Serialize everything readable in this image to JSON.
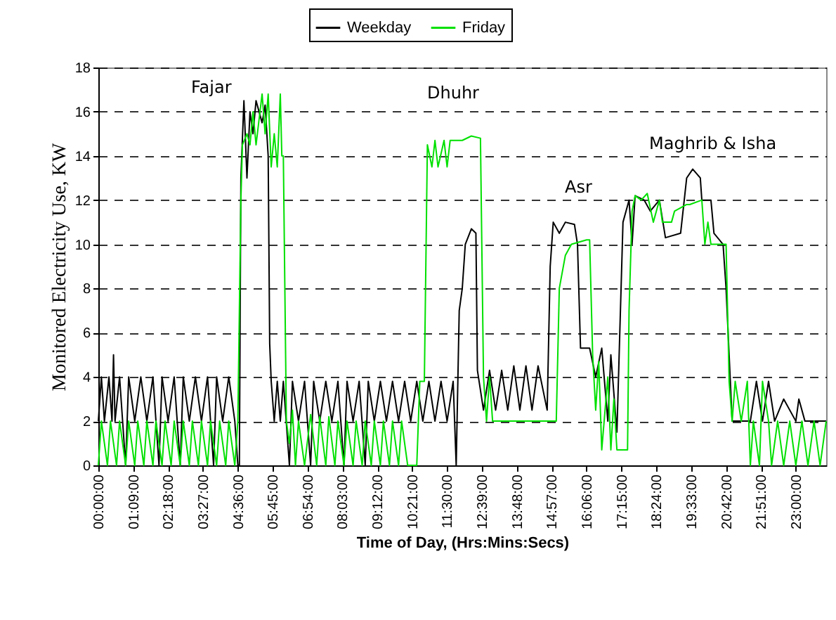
{
  "chart_data": {
    "type": "line",
    "xlabel": "Time of Day, (Hrs:Mins:Secs)",
    "ylabel": "Monitored Electricity Use, KW",
    "xlim": [
      0,
      24
    ],
    "ylim": [
      0,
      18
    ],
    "xticks": [
      {
        "value": 0,
        "label": "00:00:00"
      },
      {
        "value": 1.15,
        "label": "01:09:00"
      },
      {
        "value": 2.3,
        "label": "02:18:00"
      },
      {
        "value": 3.45,
        "label": "03:27:00"
      },
      {
        "value": 4.6,
        "label": "04:36:00"
      },
      {
        "value": 5.75,
        "label": "05:45:00"
      },
      {
        "value": 6.9,
        "label": "06:54:00"
      },
      {
        "value": 8.05,
        "label": "08:03:00"
      },
      {
        "value": 9.2,
        "label": "09:12:00"
      },
      {
        "value": 10.35,
        "label": "10:21:00"
      },
      {
        "value": 11.5,
        "label": "11:30:00"
      },
      {
        "value": 12.65,
        "label": "12:39:00"
      },
      {
        "value": 13.8,
        "label": "13:48:00"
      },
      {
        "value": 14.95,
        "label": "14:57:00"
      },
      {
        "value": 16.1,
        "label": "16:06:00"
      },
      {
        "value": 17.25,
        "label": "17:15:00"
      },
      {
        "value": 18.4,
        "label": "18:24:00"
      },
      {
        "value": 19.55,
        "label": "19:33:00"
      },
      {
        "value": 20.7,
        "label": "20:42:00"
      },
      {
        "value": 21.85,
        "label": "21:51:00"
      },
      {
        "value": 23,
        "label": "23:00:00"
      }
    ],
    "yticks": [
      0,
      2,
      4,
      6,
      8,
      10,
      12,
      14,
      16,
      18
    ],
    "grid": "y",
    "legend": "top",
    "line_style": "solid",
    "marker": "none",
    "annotations": [
      "Fajar",
      "Dhuhr",
      "Asr",
      "Maghrib & Isha"
    ],
    "series": [
      {
        "name": "Weekday",
        "color": "#000000",
        "x": [
          0,
          0.1,
          0.2,
          0.35,
          0.45,
          0.5,
          0.55,
          0.7,
          0.9,
          1.0,
          1.2,
          1.4,
          1.6,
          1.8,
          2.0,
          2.1,
          2.3,
          2.5,
          2.7,
          2.8,
          3.0,
          3.2,
          3.4,
          3.6,
          3.8,
          3.9,
          4.1,
          4.3,
          4.5,
          4.6,
          4.65,
          4.7,
          4.8,
          4.9,
          5.0,
          5.1,
          5.2,
          5.4,
          5.5,
          5.6,
          5.65,
          5.7,
          5.8,
          5.9,
          6.0,
          6.1,
          6.3,
          6.4,
          6.6,
          6.8,
          7.0,
          7.1,
          7.3,
          7.5,
          7.7,
          7.9,
          8.1,
          8.2,
          8.4,
          8.6,
          8.8,
          8.9,
          9.1,
          9.3,
          9.5,
          9.7,
          9.9,
          10.1,
          10.3,
          10.5,
          10.7,
          10.9,
          11.1,
          11.3,
          11.5,
          11.7,
          11.8,
          11.9,
          12.0,
          12.1,
          12.3,
          12.45,
          12.5,
          12.7,
          12.9,
          13.1,
          13.3,
          13.5,
          13.7,
          13.9,
          14.1,
          14.3,
          14.5,
          14.8,
          14.9,
          15.0,
          15.2,
          15.4,
          15.7,
          15.8,
          15.9,
          16.2,
          16.4,
          16.6,
          16.8,
          16.9,
          17.1,
          17.3,
          17.5,
          17.6,
          17.7,
          18.0,
          18.2,
          18.5,
          18.7,
          19.2,
          19.4,
          19.6,
          19.85,
          19.9,
          20.2,
          20.3,
          20.6,
          20.7,
          20.9,
          21.5,
          21.7,
          21.9,
          22.1,
          22.3,
          22.6,
          23.0,
          23.1,
          23.3,
          24.0
        ],
        "values": [
          2,
          4,
          2,
          4,
          2,
          5,
          2,
          4,
          0,
          4,
          2,
          4,
          2,
          4,
          0,
          4,
          2,
          4,
          0,
          4,
          2,
          4,
          2,
          4,
          0,
          4,
          2,
          4,
          2,
          0,
          0,
          13,
          16.5,
          13,
          16,
          15,
          16.5,
          15.5,
          16.3,
          14,
          5.5,
          3.8,
          2,
          3.8,
          2,
          3.8,
          0,
          3.8,
          2,
          3.8,
          0,
          3.8,
          2,
          3.8,
          2,
          3.8,
          0,
          3.8,
          2,
          3.8,
          0,
          3.8,
          2,
          3.8,
          2,
          3.8,
          2,
          3.8,
          2,
          3.8,
          2,
          3.8,
          2,
          3.8,
          2,
          3.8,
          0,
          7,
          8,
          10,
          10.7,
          10.5,
          4.3,
          2.5,
          4.3,
          2.5,
          4.3,
          2.5,
          4.5,
          2.5,
          4.5,
          2.5,
          4.5,
          2.5,
          9,
          11,
          10.5,
          11,
          10.9,
          10,
          5.3,
          5.3,
          4,
          5.3,
          2,
          5,
          1.5,
          11,
          12,
          10,
          12.2,
          12,
          11.5,
          12,
          10.3,
          10.5,
          13,
          13.4,
          13,
          12,
          12,
          10.5,
          10,
          8,
          2,
          2,
          3.8,
          2,
          3.8,
          2,
          3,
          2,
          3,
          2,
          2
        ]
      },
      {
        "name": "Friday",
        "color": "#00e000",
        "x": [
          0,
          0.1,
          0.3,
          0.4,
          0.6,
          0.7,
          0.9,
          1.0,
          1.2,
          1.3,
          1.5,
          1.6,
          1.8,
          1.9,
          2.1,
          2.2,
          2.4,
          2.5,
          2.7,
          2.8,
          3.0,
          3.1,
          3.3,
          3.4,
          3.6,
          3.7,
          3.9,
          4.0,
          4.2,
          4.3,
          4.5,
          4.6,
          4.7,
          4.75,
          4.9,
          5.0,
          5.1,
          5.2,
          5.4,
          5.5,
          5.6,
          5.7,
          5.8,
          5.9,
          6.0,
          6.05,
          6.1,
          6.2,
          6.3,
          6.4,
          6.5,
          6.6,
          6.8,
          7.0,
          7.2,
          7.3,
          7.5,
          7.6,
          7.8,
          7.9,
          8.1,
          8.2,
          8.4,
          8.5,
          8.7,
          8.8,
          9.0,
          9.1,
          9.3,
          9.4,
          9.6,
          9.7,
          9.9,
          10.0,
          10.2,
          10.5,
          10.6,
          10.75,
          10.85,
          11.0,
          11.1,
          11.2,
          11.4,
          11.5,
          11.6,
          12.0,
          12.3,
          12.6,
          12.7,
          12.8,
          12.9,
          13.0,
          15.1,
          15.2,
          15.4,
          15.6,
          16.1,
          16.2,
          16.3,
          16.4,
          16.5,
          16.6,
          16.8,
          16.9,
          17.0,
          17.1,
          17.45,
          17.5,
          17.6,
          17.7,
          17.9,
          18.1,
          18.3,
          18.5,
          18.6,
          18.9,
          19.0,
          19.4,
          19.5,
          19.9,
          20.0,
          20.1,
          20.2,
          20.7,
          20.8,
          20.9,
          21.0,
          21.2,
          21.4,
          21.5,
          21.6,
          21.8,
          21.9,
          22.1,
          22.2,
          22.4,
          22.6,
          22.8,
          23.0,
          23.2,
          23.4,
          23.6,
          23.8,
          24.0
        ],
        "values": [
          0,
          2,
          0,
          2,
          0,
          2,
          0,
          2,
          0,
          2,
          0,
          2,
          0,
          2,
          0,
          2,
          0,
          2,
          0,
          2,
          0,
          2,
          0,
          2,
          0,
          2,
          0,
          2,
          0,
          2,
          0,
          2,
          12,
          14.5,
          15,
          14.5,
          16,
          14.5,
          16.8,
          15,
          16.8,
          13.5,
          15,
          13.5,
          16.8,
          14,
          14,
          2,
          1,
          2.5,
          0,
          2,
          0,
          2.3,
          0,
          2.2,
          0,
          2.2,
          0,
          2,
          0,
          2,
          0,
          2,
          0,
          2,
          0,
          2,
          0,
          2,
          0,
          2,
          0,
          2,
          0,
          0,
          3.8,
          3.8,
          14.5,
          13.5,
          14.7,
          13.5,
          14.7,
          13.5,
          14.7,
          14.7,
          14.9,
          14.8,
          4,
          2,
          4,
          2,
          2,
          8,
          9.5,
          10,
          10.2,
          10.2,
          5,
          2.5,
          4.7,
          0.7,
          4,
          0.7,
          3,
          0.7,
          0.7,
          7,
          11.5,
          12.2,
          12,
          12.3,
          11,
          12,
          11,
          11,
          11.5,
          11.8,
          11.8,
          12,
          10,
          11,
          10,
          10,
          3.8,
          2,
          3.8,
          2,
          3.8,
          0,
          2,
          0,
          3.8,
          2,
          0,
          2,
          0,
          2,
          0,
          2,
          0,
          2,
          0,
          2
        ]
      }
    ]
  }
}
